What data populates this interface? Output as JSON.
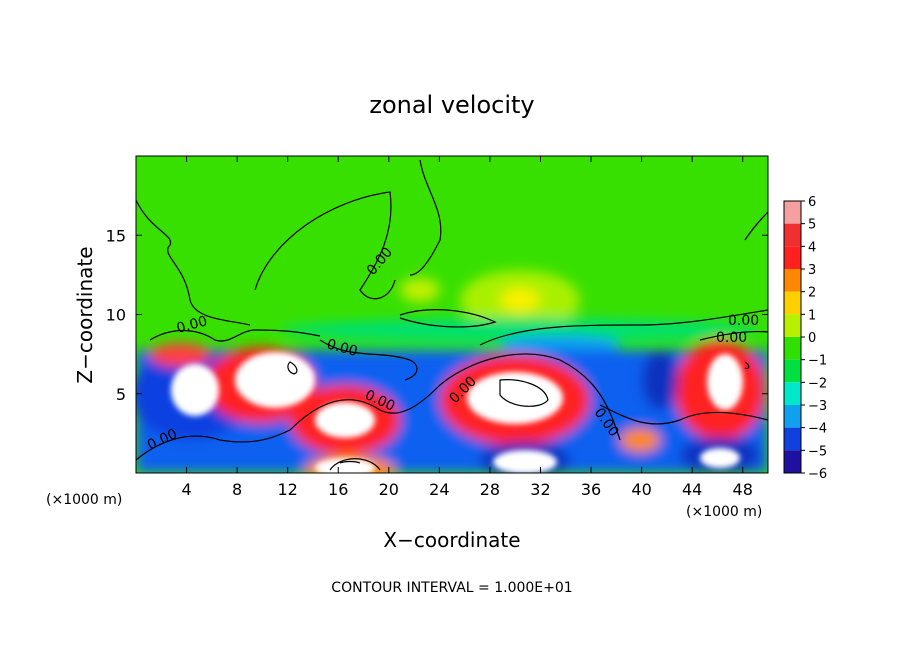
{
  "chart_data": {
    "type": "heatmap",
    "title": "zonal velocity",
    "xlabel": "X−coordinate",
    "ylabel": "Z−coordinate",
    "x_units": "(×1000 m)",
    "z_units": "(×1000 m)",
    "xlim": [
      0,
      50
    ],
    "ylim": [
      0,
      20
    ],
    "x_ticks": [
      4,
      8,
      12,
      16,
      20,
      24,
      28,
      32,
      36,
      40,
      44,
      48
    ],
    "y_ticks": [
      5,
      10,
      15
    ],
    "colorbar": {
      "levels": [
        6,
        5,
        4,
        3,
        2,
        1,
        0,
        -1,
        -2,
        -3,
        -4,
        -5,
        -6
      ],
      "colors": [
        "#f4a0a0",
        "#f03030",
        "#ff2020",
        "#ff8800",
        "#ffd000",
        "#b8f000",
        "#30e000",
        "#00e040",
        "#00e8c8",
        "#10a0f0",
        "#1040e0",
        "#2010a0",
        "#7a008a"
      ]
    },
    "contour_labels": [
      "0.00",
      "0.00",
      "0.00",
      "0.00",
      "0.00",
      "0.00",
      "0.00",
      "0.00",
      "0.00"
    ],
    "footer": "CONTOUR INTERVAL = 1.000E+01"
  }
}
